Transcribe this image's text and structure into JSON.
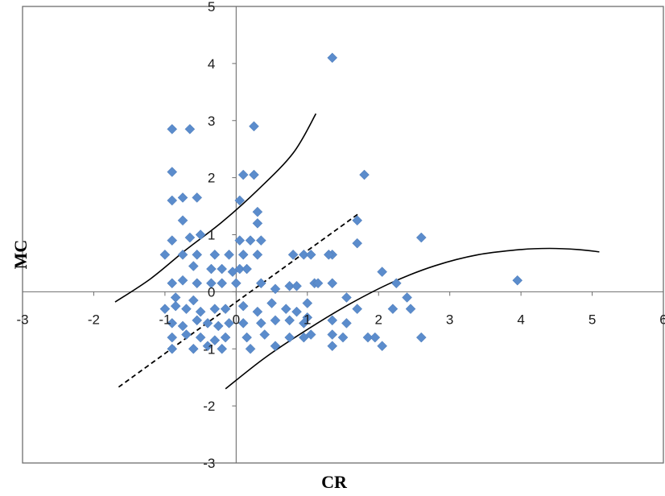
{
  "chart_data": {
    "type": "scatter",
    "title": "",
    "xlabel": "CR",
    "ylabel": "MC",
    "xlim": [
      -3,
      6
    ],
    "ylim": [
      -3,
      5
    ],
    "xticks": [
      "-3",
      "-2",
      "-1",
      "0",
      "1",
      "2",
      "3",
      "4",
      "5",
      "6"
    ],
    "yticks": [
      "-3",
      "-2",
      "-1",
      "0",
      "1",
      "2",
      "3",
      "4",
      "5"
    ],
    "grid": false,
    "legend": "none",
    "marker_color": "#5b8ccc",
    "series": [
      {
        "marker": "diamond",
        "points": [
          [
            -0.9,
            2.85
          ],
          [
            -0.65,
            2.85
          ],
          [
            -0.9,
            2.1
          ],
          [
            -0.9,
            1.6
          ],
          [
            -0.75,
            1.65
          ],
          [
            -0.55,
            1.65
          ],
          [
            -0.75,
            1.25
          ],
          [
            -0.65,
            0.95
          ],
          [
            -0.5,
            1.0
          ],
          [
            -0.9,
            0.9
          ],
          [
            -1.0,
            0.65
          ],
          [
            -0.75,
            0.65
          ],
          [
            -0.55,
            0.65
          ],
          [
            -0.3,
            0.65
          ],
          [
            -0.1,
            0.65
          ],
          [
            -0.6,
            0.45
          ],
          [
            -0.35,
            0.4
          ],
          [
            -0.2,
            0.4
          ],
          [
            -0.05,
            0.35
          ],
          [
            -0.9,
            0.15
          ],
          [
            -0.75,
            0.2
          ],
          [
            -0.55,
            0.15
          ],
          [
            -0.35,
            0.15
          ],
          [
            -0.2,
            0.15
          ],
          [
            -1.0,
            -0.3
          ],
          [
            -0.85,
            -0.25
          ],
          [
            -0.7,
            -0.3
          ],
          [
            -0.5,
            -0.35
          ],
          [
            -0.3,
            -0.3
          ],
          [
            -0.15,
            -0.3
          ],
          [
            -0.9,
            -0.55
          ],
          [
            -0.75,
            -0.6
          ],
          [
            -0.55,
            -0.5
          ],
          [
            -0.4,
            -0.55
          ],
          [
            -0.25,
            -0.6
          ],
          [
            -0.1,
            -0.55
          ],
          [
            -0.9,
            -0.8
          ],
          [
            -0.7,
            -0.75
          ],
          [
            -0.5,
            -0.8
          ],
          [
            -0.3,
            -0.85
          ],
          [
            -0.15,
            -0.8
          ],
          [
            -0.9,
            -1.0
          ],
          [
            -0.6,
            -1.0
          ],
          [
            -0.4,
            -0.95
          ],
          [
            -0.2,
            -1.0
          ],
          [
            -0.85,
            -0.1
          ],
          [
            -0.6,
            -0.15
          ],
          [
            0.1,
            2.05
          ],
          [
            0.25,
            2.05
          ],
          [
            0.25,
            2.9
          ],
          [
            0.05,
            1.6
          ],
          [
            0.3,
            1.4
          ],
          [
            0.3,
            1.2
          ],
          [
            0.05,
            0.9
          ],
          [
            0.2,
            0.9
          ],
          [
            0.35,
            0.9
          ],
          [
            0.1,
            0.65
          ],
          [
            0.3,
            0.65
          ],
          [
            0.05,
            0.4
          ],
          [
            0.15,
            0.4
          ],
          [
            0.0,
            0.15
          ],
          [
            0.35,
            0.15
          ],
          [
            0.1,
            -0.25
          ],
          [
            0.3,
            -0.35
          ],
          [
            0.5,
            -0.2
          ],
          [
            0.55,
            0.05
          ],
          [
            0.1,
            -0.55
          ],
          [
            0.35,
            -0.55
          ],
          [
            0.55,
            -0.5
          ],
          [
            0.15,
            -0.8
          ],
          [
            0.4,
            -0.75
          ],
          [
            0.2,
            -1.0
          ],
          [
            0.55,
            -0.95
          ],
          [
            0.75,
            0.1
          ],
          [
            0.85,
            0.1
          ],
          [
            0.7,
            -0.3
          ],
          [
            0.85,
            -0.35
          ],
          [
            0.75,
            -0.5
          ],
          [
            0.95,
            -0.55
          ],
          [
            0.75,
            -0.8
          ],
          [
            0.95,
            -0.8
          ],
          [
            0.8,
            0.65
          ],
          [
            0.95,
            0.65
          ],
          [
            1.05,
            0.65
          ],
          [
            1.0,
            -0.2
          ],
          [
            1.0,
            -0.45
          ],
          [
            1.05,
            -0.75
          ],
          [
            1.1,
            0.15
          ],
          [
            1.15,
            0.15
          ],
          [
            1.35,
            0.65
          ],
          [
            1.3,
            0.65
          ],
          [
            1.35,
            4.1
          ],
          [
            1.8,
            2.05
          ],
          [
            1.7,
            1.25
          ],
          [
            1.7,
            0.85
          ],
          [
            1.35,
            0.15
          ],
          [
            1.55,
            -0.1
          ],
          [
            1.7,
            -0.3
          ],
          [
            1.35,
            -0.5
          ],
          [
            1.55,
            -0.55
          ],
          [
            1.35,
            -0.75
          ],
          [
            1.5,
            -0.8
          ],
          [
            1.35,
            -0.95
          ],
          [
            1.85,
            -0.8
          ],
          [
            1.95,
            -0.8
          ],
          [
            2.05,
            -0.95
          ],
          [
            2.05,
            0.35
          ],
          [
            2.25,
            0.15
          ],
          [
            2.2,
            -0.3
          ],
          [
            2.4,
            -0.1
          ],
          [
            2.45,
            -0.3
          ],
          [
            2.6,
            0.95
          ],
          [
            2.6,
            -0.8
          ],
          [
            3.95,
            0.2
          ]
        ]
      }
    ],
    "curves": [
      {
        "style": "solid",
        "points": [
          [
            -1.7,
            -0.18
          ],
          [
            -1.2,
            0.23
          ],
          [
            -0.7,
            0.74
          ],
          [
            -0.2,
            1.22
          ],
          [
            0.3,
            1.78
          ],
          [
            0.8,
            2.43
          ],
          [
            1.12,
            3.12
          ]
        ]
      },
      {
        "style": "dashed",
        "points": [
          [
            -1.65,
            -1.67
          ],
          [
            -0.7,
            -0.81
          ],
          [
            0.3,
            0.09
          ],
          [
            1.4,
            1.08
          ],
          [
            1.72,
            1.37
          ]
        ]
      },
      {
        "style": "solid",
        "points": [
          [
            -0.15,
            -1.7
          ],
          [
            0.4,
            -1.16
          ],
          [
            1.0,
            -0.66
          ],
          [
            1.6,
            -0.21
          ],
          [
            2.2,
            0.17
          ],
          [
            2.8,
            0.46
          ],
          [
            3.4,
            0.65
          ],
          [
            4.0,
            0.74
          ],
          [
            4.4,
            0.76
          ],
          [
            4.8,
            0.74
          ],
          [
            5.1,
            0.7
          ]
        ]
      }
    ]
  }
}
